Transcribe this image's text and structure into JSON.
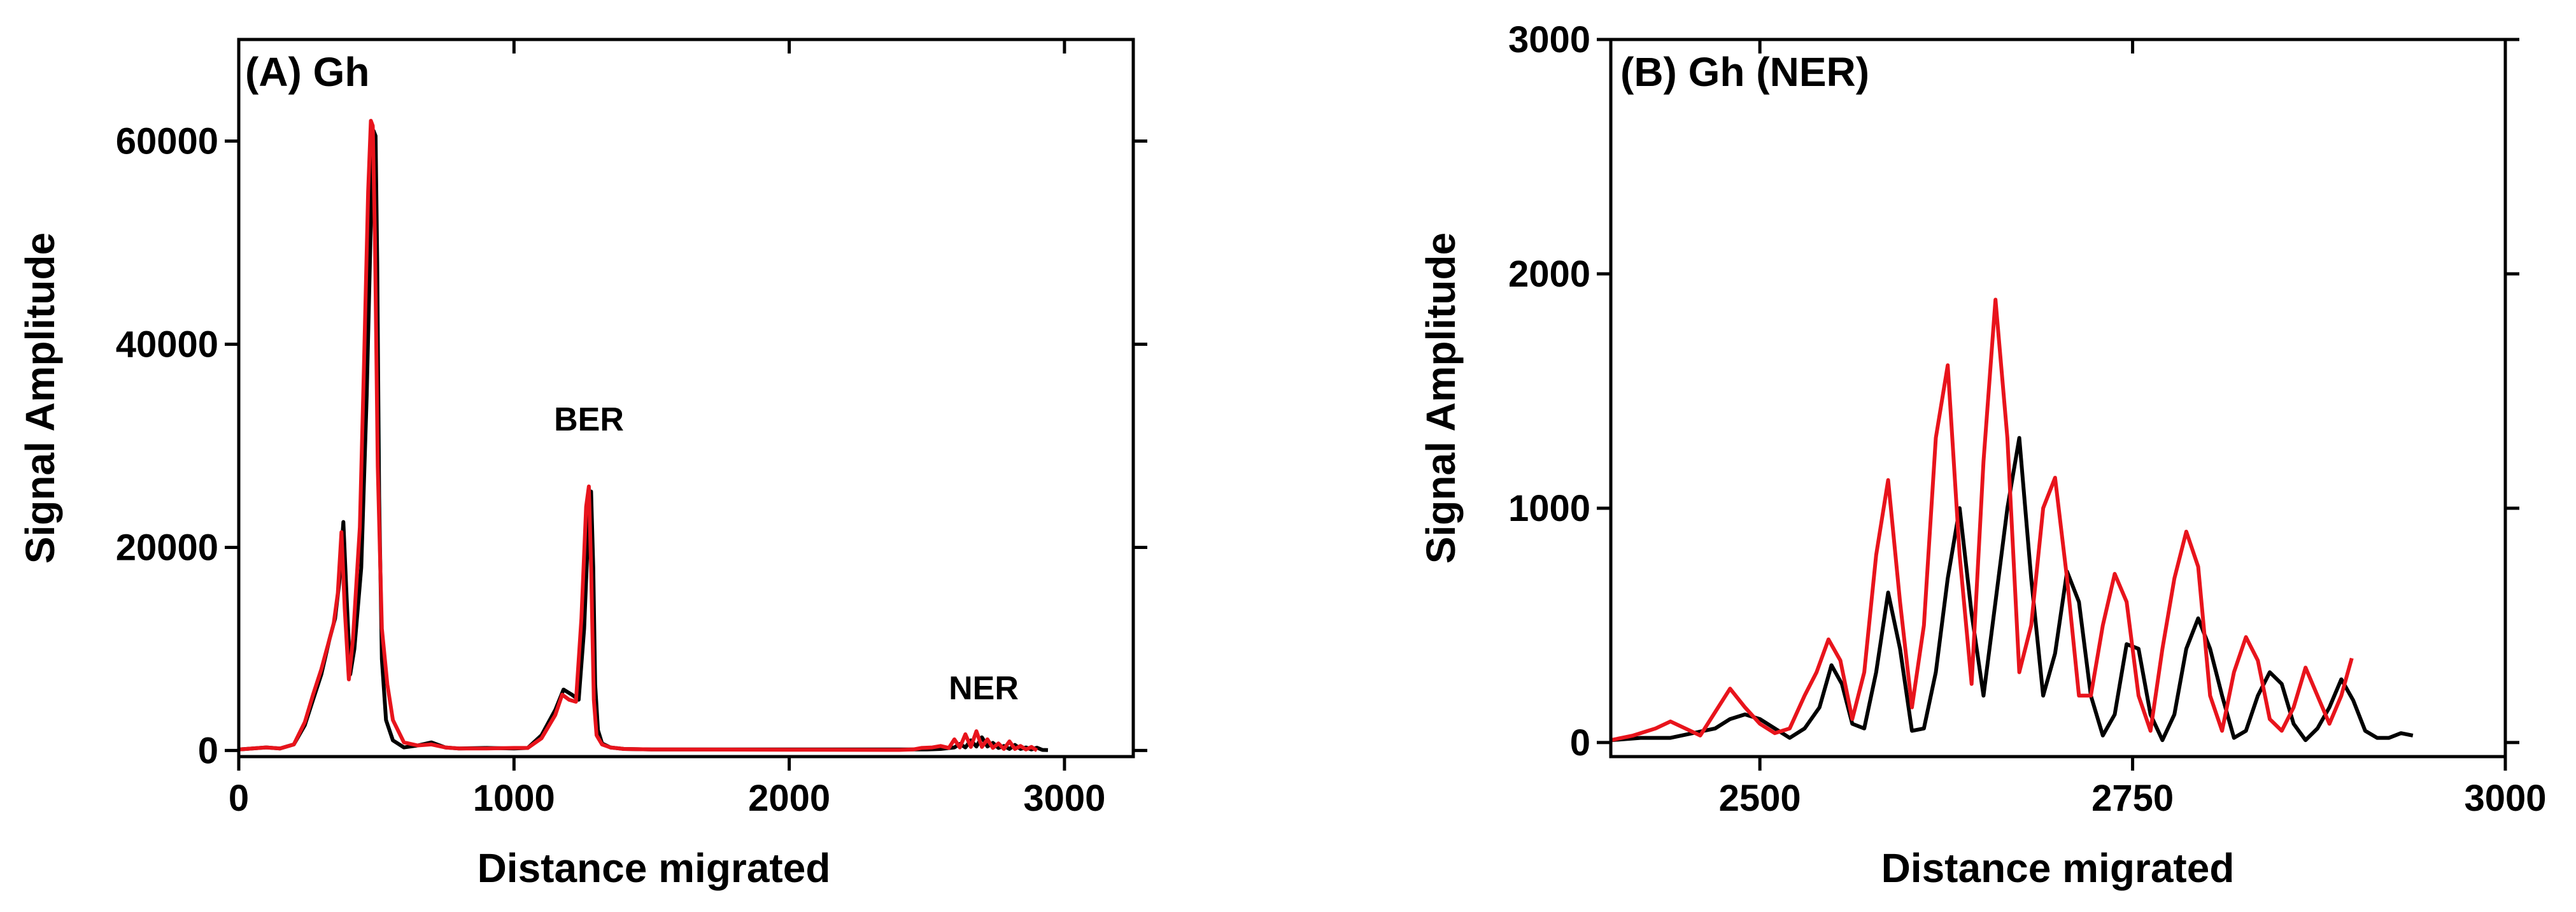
{
  "colors": {
    "black_series": "#000000",
    "red_series": "#e8141c",
    "axis": "#000000"
  },
  "chart_data": [
    {
      "type": "line",
      "title": "(A) Gh",
      "xlabel": "Distance migrated",
      "ylabel": "Signal Amplitude",
      "xlim": [
        0,
        3250
      ],
      "ylim": [
        -600,
        70000
      ],
      "xticks": [
        0,
        1000,
        2000,
        3000
      ],
      "yticks": [
        0,
        20000,
        40000,
        60000
      ],
      "xtick_labels": [
        "0",
        "1000",
        "2000",
        "3000"
      ],
      "ytick_labels": [
        "0",
        "20000",
        "40000",
        "60000"
      ],
      "annotations": [
        {
          "text": "BER",
          "x": 1270,
          "y": 31500
        },
        {
          "text": "NER",
          "x": 2690,
          "y": 5000
        }
      ],
      "series": [
        {
          "color": "#000000",
          "x": [
            0,
            100,
            150,
            200,
            240,
            270,
            300,
            330,
            350,
            365,
            380,
            392,
            405,
            420,
            445,
            465,
            480,
            490,
            497,
            503,
            510,
            520,
            535,
            560,
            600,
            650,
            700,
            750,
            800,
            900,
            1000,
            1050,
            1100,
            1150,
            1180,
            1210,
            1235,
            1255,
            1270,
            1280,
            1288,
            1295,
            1305,
            1320,
            1350,
            1400,
            1500,
            2000,
            2500,
            2550,
            2600,
            2620,
            2640,
            2660,
            2680,
            2700,
            2720,
            2740,
            2760,
            2780,
            2800,
            2820,
            2840,
            2860,
            2880,
            2900,
            2920,
            2940
          ],
          "y": [
            100,
            300,
            200,
            600,
            2500,
            5000,
            7500,
            11000,
            13000,
            16500,
            22500,
            15000,
            7500,
            10000,
            18000,
            35000,
            52000,
            61000,
            60500,
            48000,
            25000,
            9000,
            3000,
            1000,
            300,
            500,
            800,
            300,
            200,
            250,
            200,
            250,
            1500,
            4000,
            6000,
            5500,
            5000,
            12000,
            22000,
            25500,
            18000,
            6500,
            2000,
            700,
            300,
            150,
            100,
            100,
            100,
            150,
            300,
            650,
            300,
            1000,
            400,
            1300,
            400,
            750,
            250,
            450,
            150,
            550,
            150,
            300,
            100,
            280,
            60,
            40
          ]
        },
        {
          "color": "#e8141c",
          "x": [
            0,
            100,
            150,
            200,
            240,
            270,
            300,
            325,
            345,
            360,
            373,
            385,
            400,
            415,
            440,
            455,
            470,
            480,
            487,
            495,
            505,
            520,
            540,
            560,
            600,
            650,
            700,
            750,
            800,
            900,
            1000,
            1050,
            1100,
            1150,
            1175,
            1200,
            1225,
            1245,
            1262,
            1272,
            1280,
            1290,
            1300,
            1320,
            1350,
            1400,
            1500,
            2000,
            2400,
            2450,
            2480,
            2520,
            2550,
            2580,
            2600,
            2620,
            2640,
            2660,
            2680,
            2700,
            2720,
            2740,
            2760,
            2780,
            2800,
            2820,
            2840,
            2860,
            2880,
            2900
          ],
          "y": [
            100,
            300,
            200,
            600,
            2800,
            5500,
            8000,
            10500,
            12500,
            15500,
            21500,
            14000,
            7000,
            11000,
            22000,
            38000,
            55000,
            62000,
            61500,
            50000,
            28000,
            12000,
            6500,
            3000,
            800,
            500,
            600,
            300,
            200,
            200,
            250,
            250,
            1200,
            3500,
            5500,
            5000,
            4800,
            13000,
            24000,
            26000,
            18000,
            5000,
            1500,
            600,
            300,
            150,
            100,
            80,
            60,
            100,
            250,
            300,
            450,
            250,
            1100,
            300,
            1600,
            350,
            1900,
            350,
            1100,
            250,
            700,
            150,
            900,
            150,
            450,
            100,
            350,
            0
          ]
        }
      ]
    },
    {
      "type": "line",
      "title": "(B) Gh (NER)",
      "xlabel": "Distance migrated",
      "ylabel": "Signal Amplitude",
      "xlim": [
        2400,
        3000
      ],
      "ylim": [
        -60,
        3000
      ],
      "xticks": [
        2500,
        2750,
        3000
      ],
      "yticks": [
        0,
        1000,
        2000,
        3000
      ],
      "xtick_labels": [
        "2500",
        "2750",
        "3000"
      ],
      "ytick_labels": [
        "0",
        "1000",
        "2000",
        "3000"
      ],
      "series": [
        {
          "color": "#000000",
          "x": [
            2400,
            2420,
            2440,
            2455,
            2470,
            2480,
            2490,
            2500,
            2510,
            2520,
            2530,
            2540,
            2548,
            2555,
            2562,
            2570,
            2578,
            2586,
            2594,
            2602,
            2610,
            2618,
            2626,
            2634,
            2642,
            2650,
            2658,
            2666,
            2674,
            2682,
            2690,
            2698,
            2706,
            2714,
            2722,
            2730,
            2738,
            2746,
            2754,
            2762,
            2770,
            2778,
            2786,
            2794,
            2802,
            2810,
            2818,
            2826,
            2834,
            2842,
            2850,
            2858,
            2866,
            2874,
            2882,
            2890,
            2898,
            2906,
            2914,
            2922,
            2930,
            2938
          ],
          "y": [
            10,
            20,
            20,
            40,
            60,
            100,
            120,
            100,
            60,
            20,
            60,
            150,
            330,
            250,
            80,
            60,
            300,
            640,
            400,
            50,
            60,
            300,
            700,
            1000,
            550,
            200,
            600,
            1000,
            1300,
            700,
            200,
            380,
            730,
            600,
            200,
            30,
            120,
            420,
            400,
            120,
            10,
            120,
            400,
            530,
            400,
            200,
            20,
            50,
            200,
            300,
            250,
            80,
            10,
            60,
            150,
            270,
            180,
            50,
            20,
            20,
            40,
            30
          ]
        },
        {
          "color": "#e8141c",
          "x": [
            2400,
            2415,
            2430,
            2440,
            2450,
            2460,
            2470,
            2480,
            2490,
            2500,
            2510,
            2520,
            2530,
            2538,
            2546,
            2554,
            2562,
            2570,
            2578,
            2586,
            2594,
            2602,
            2610,
            2618,
            2626,
            2634,
            2642,
            2650,
            2658,
            2666,
            2674,
            2682,
            2690,
            2698,
            2706,
            2714,
            2722,
            2730,
            2738,
            2746,
            2754,
            2762,
            2770,
            2778,
            2786,
            2794,
            2802,
            2810,
            2818,
            2826,
            2834,
            2842,
            2850,
            2858,
            2866,
            2874,
            2882,
            2890,
            2897
          ],
          "y": [
            10,
            30,
            60,
            90,
            60,
            30,
            130,
            230,
            150,
            80,
            40,
            60,
            200,
            300,
            440,
            350,
            100,
            300,
            800,
            1120,
            600,
            150,
            500,
            1300,
            1610,
            800,
            250,
            1200,
            1890,
            1300,
            300,
            500,
            1000,
            1130,
            700,
            200,
            200,
            500,
            720,
            600,
            200,
            50,
            400,
            700,
            900,
            750,
            200,
            50,
            300,
            450,
            350,
            100,
            50,
            150,
            320,
            200,
            80,
            200,
            360
          ]
        }
      ]
    }
  ]
}
